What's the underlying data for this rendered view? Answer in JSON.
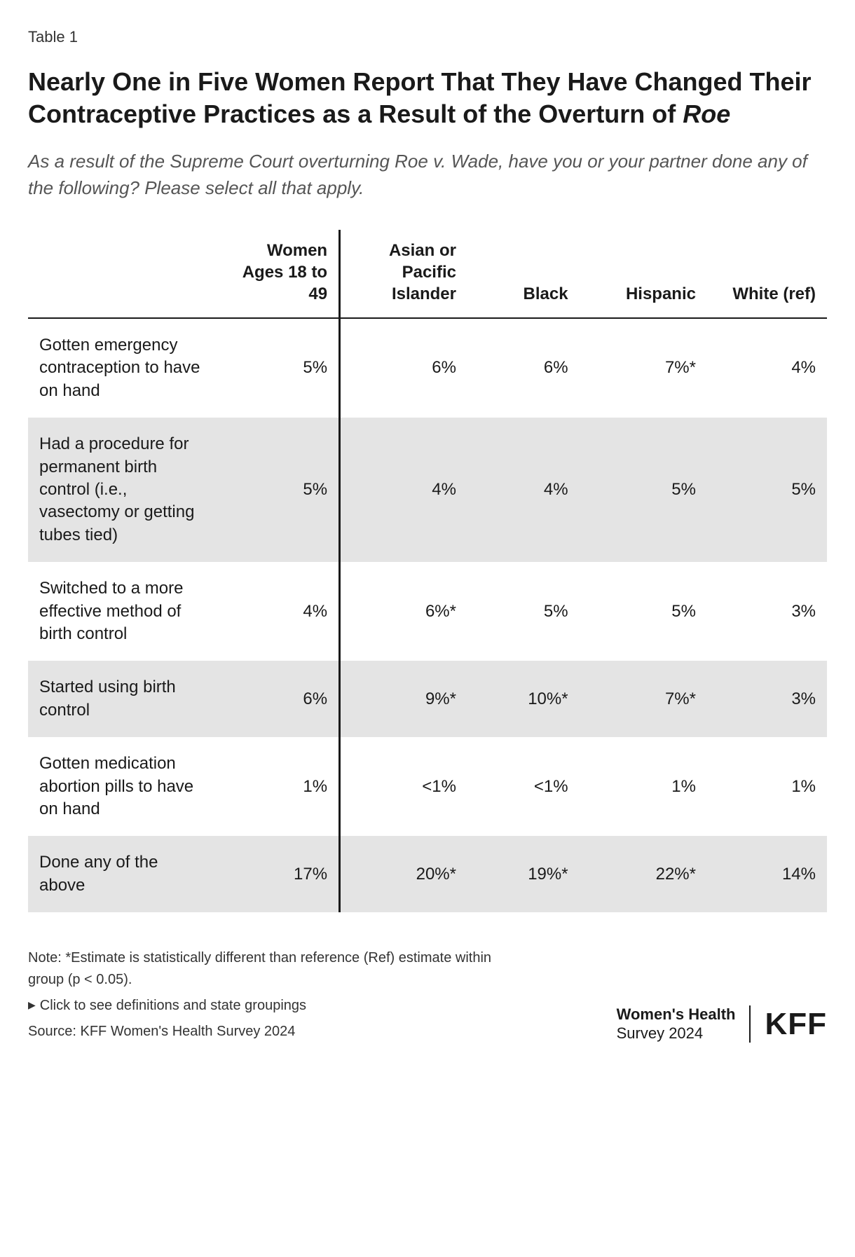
{
  "tableLabel": "Table 1",
  "title_pre": "Nearly One in Five Women Report That They Have Changed Their Contraceptive Practices as a Result of the Overturn of ",
  "title_italic": "Roe",
  "subtitle": "As a result of the Supreme Court overturning Roe v. Wade, have you or your partner done any of the following? Please select all that apply.",
  "columns": [
    "",
    "Women Ages 18 to 49",
    "Asian or Pacific Islander",
    "Black",
    "Hispanic",
    "White (ref)"
  ],
  "rows": [
    {
      "label": "Gotten emergency contraception to have on hand",
      "cells": [
        "5%",
        "6%",
        "6%",
        "7%*",
        "4%"
      ]
    },
    {
      "label": "Had a procedure for permanent birth control (i.e., vasectomy or getting tubes tied)",
      "cells": [
        "5%",
        "4%",
        "4%",
        "5%",
        "5%"
      ]
    },
    {
      "label": "Switched to a more effective method of birth control",
      "cells": [
        "4%",
        "6%*",
        "5%",
        "5%",
        "3%"
      ]
    },
    {
      "label": "Started using birth control",
      "cells": [
        "6%",
        "9%*",
        "10%*",
        "7%*",
        "3%"
      ]
    },
    {
      "label": "Gotten medication abortion pills to have on hand",
      "cells": [
        "1%",
        "<1%",
        "<1%",
        "1%",
        "1%"
      ]
    },
    {
      "label": "Done any of the above",
      "cells": [
        "17%",
        "20%*",
        "19%*",
        "22%*",
        "14%"
      ]
    }
  ],
  "note": "Note: *Estimate is statistically different than reference (Ref) estimate within group (p < 0.05).",
  "definitionsLink": "Click to see definitions and state groupings",
  "source": "Source: KFF Women's Health Survey 2024",
  "brand": {
    "line1": "Women's Health",
    "line2": "Survey 2024",
    "logo": "KFF"
  },
  "style": {
    "background": "#ffffff",
    "text": "#1a1a1a",
    "shadedRow": "#e4e4e4",
    "titleFontSize": 36,
    "subtitleFontSize": 26,
    "tableFontSize": 24,
    "footerFontSize": 20
  }
}
